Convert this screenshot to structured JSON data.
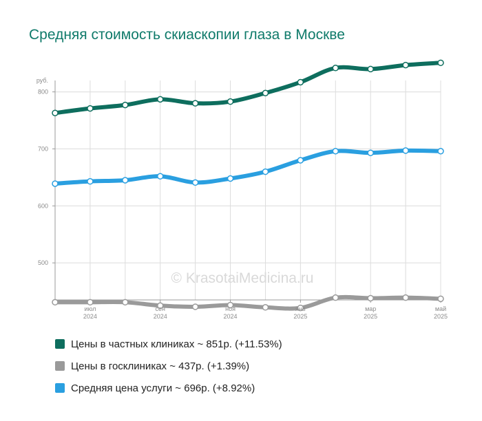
{
  "title": "Средняя стоимость скиаскопии глаза в Москве",
  "watermark": "© KrasotaiMedicina.ru",
  "chart_data": {
    "type": "line",
    "title": "Средняя стоимость скиаскопии глаза в Москве",
    "ylabel": "руб.",
    "ylim": [
      435,
      820
    ],
    "yticks": [
      500,
      600,
      700,
      800
    ],
    "grid": true,
    "legend_position": "bottom",
    "x": [
      "2024-06",
      "2024-07",
      "2024-08",
      "2024-09",
      "2024-10",
      "2024-11",
      "2024-12",
      "2025-01",
      "2025-02",
      "2025-03",
      "2025-04",
      "2025-05"
    ],
    "xtick_labels": [
      {
        "index": 1,
        "month": "июл",
        "year": "2024"
      },
      {
        "index": 3,
        "month": "сен",
        "year": "2024"
      },
      {
        "index": 5,
        "month": "ноя",
        "year": "2024"
      },
      {
        "index": 7,
        "month": "янв",
        "year": "2025"
      },
      {
        "index": 9,
        "month": "мар",
        "year": "2025"
      },
      {
        "index": 11,
        "month": "май",
        "year": "2025"
      }
    ],
    "series": [
      {
        "name": "Цены в частных клиниках",
        "color": "#0e6e5e",
        "values": [
          763,
          771,
          777,
          787,
          780,
          783,
          798,
          817,
          842,
          840,
          847,
          851
        ]
      },
      {
        "name": "Средняя цена услуги",
        "color": "#2a9fe0",
        "values": [
          639,
          643,
          645,
          652,
          641,
          648,
          660,
          680,
          696,
          693,
          697,
          696
        ]
      },
      {
        "name": "Цены в госклиниках",
        "color": "#9a9a9a",
        "values": [
          431,
          431,
          431,
          425,
          423,
          426,
          422,
          421,
          439,
          438,
          439,
          437
        ]
      }
    ]
  },
  "legend": [
    {
      "color": "#0e6e5e",
      "text": "Цены в частных клиниках ~ 851р. (+11.53%)"
    },
    {
      "color": "#9a9a9a",
      "text": "Цены в госклиниках ~ 437р. (+1.39%)"
    },
    {
      "color": "#2a9fe0",
      "text": "Средняя цена услуги ~ 696р. (+8.92%)"
    }
  ]
}
